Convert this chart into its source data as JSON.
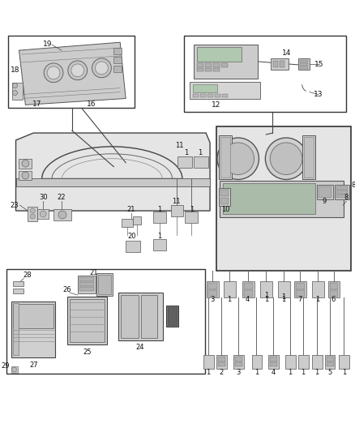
{
  "bg_color": "#ffffff",
  "fig_width": 4.38,
  "fig_height": 5.33,
  "dpi": 100,
  "line_color": "#444444",
  "light_gray": "#e8e8e8",
  "mid_gray": "#cccccc",
  "dark_gray": "#888888"
}
